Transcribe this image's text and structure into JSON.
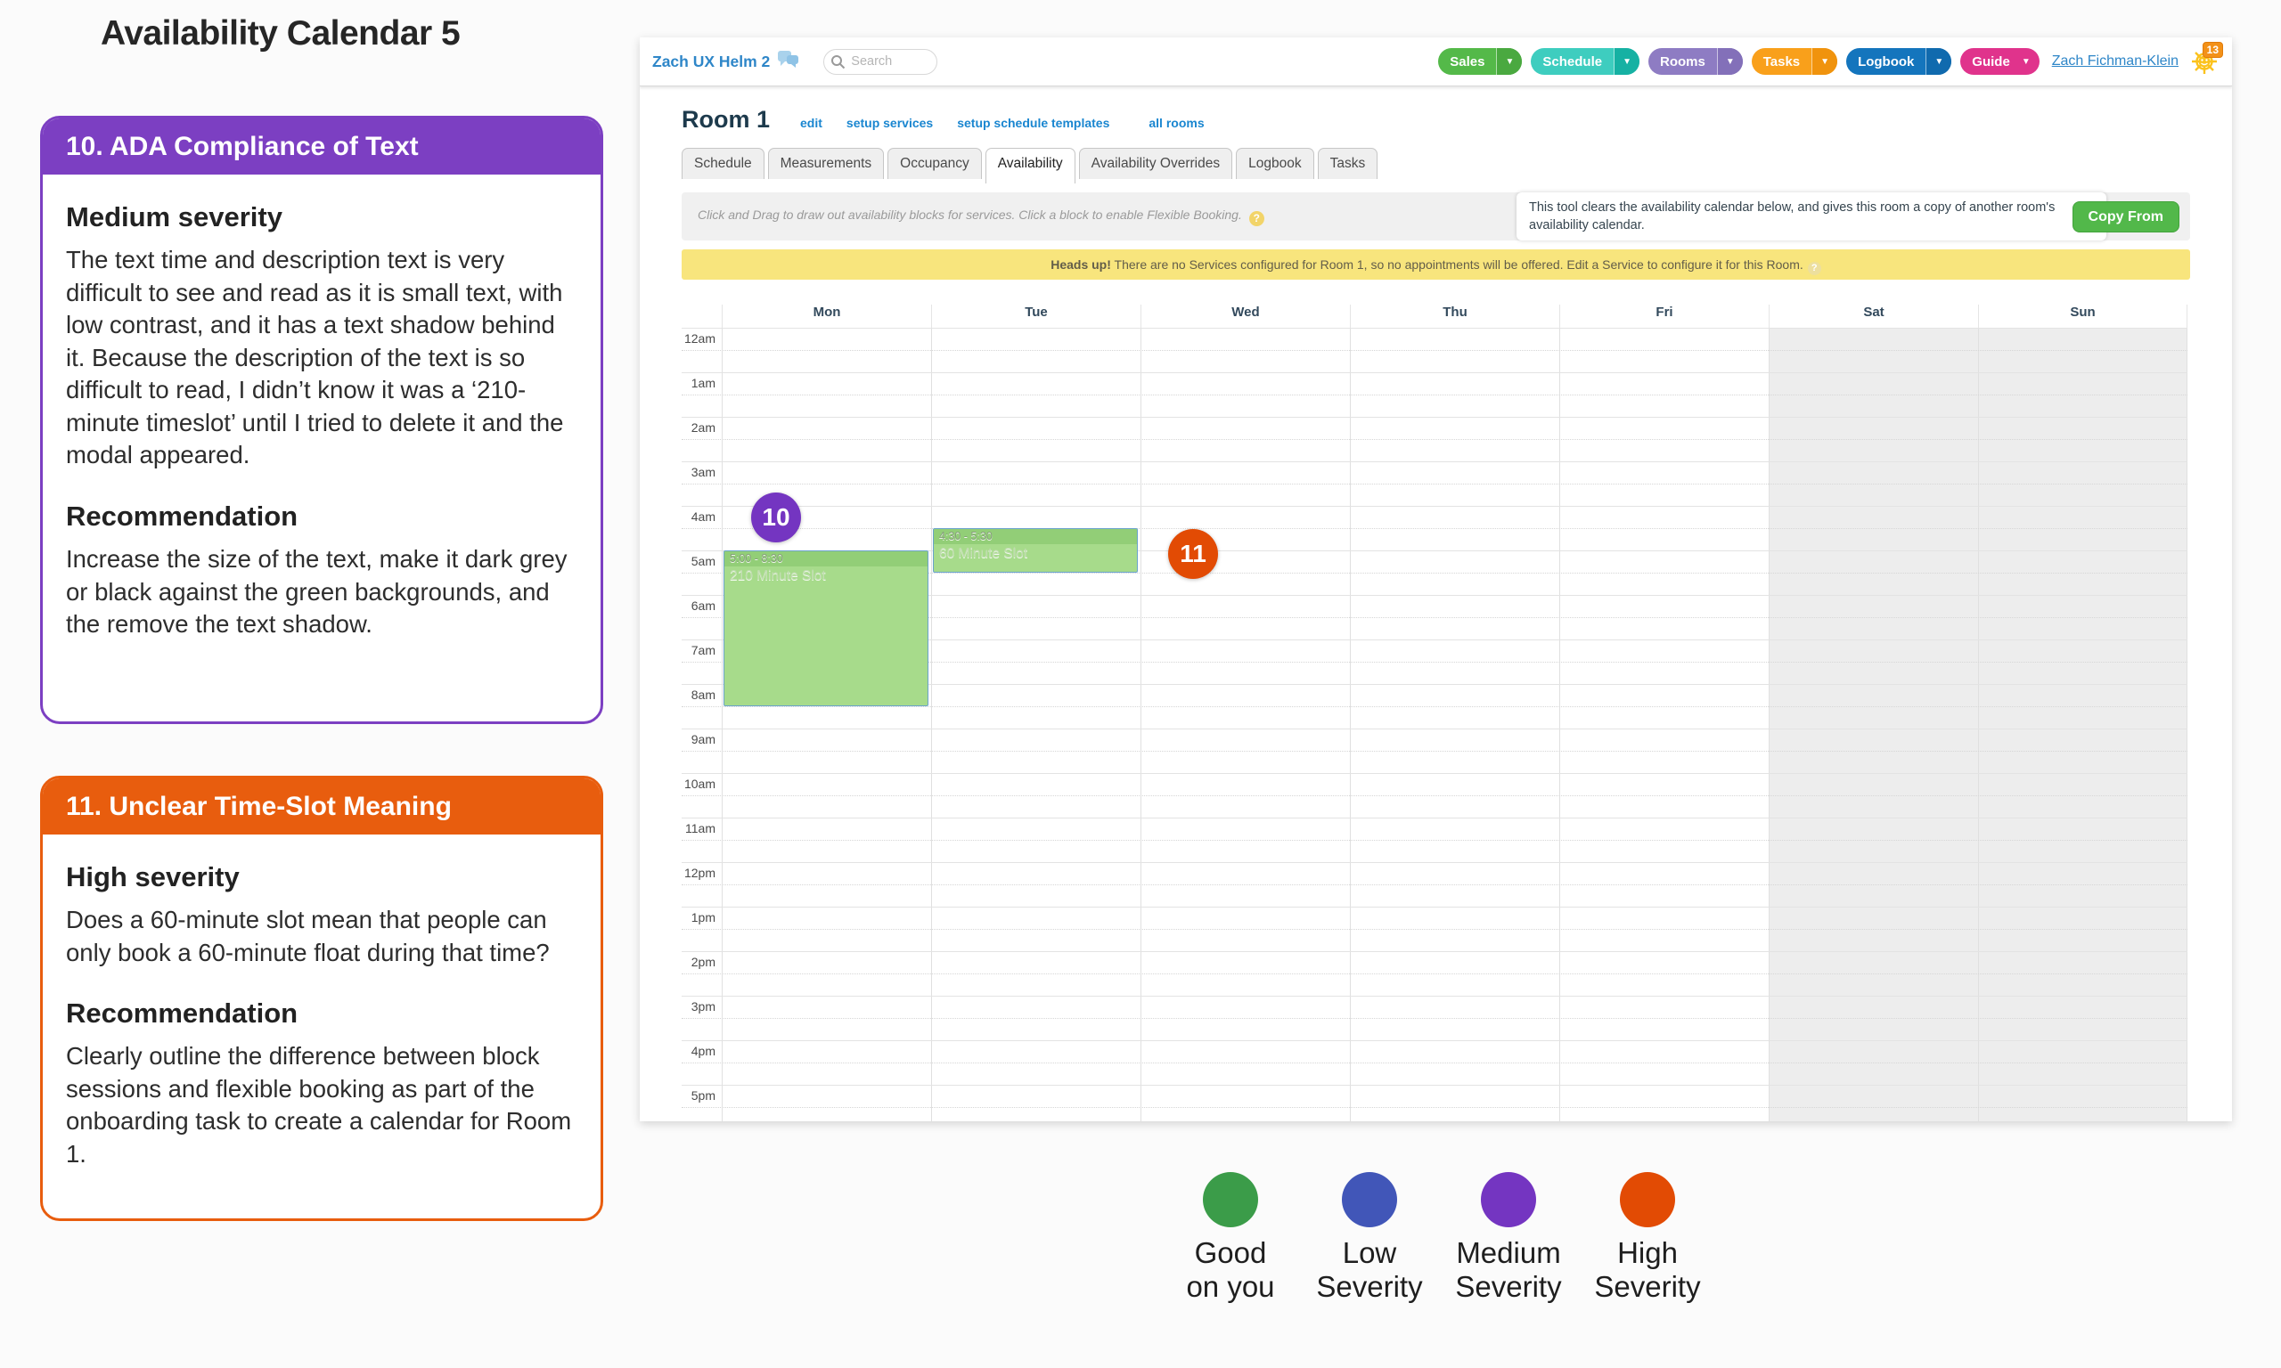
{
  "page_title": "Availability Calendar 5",
  "annotations": [
    {
      "number": "10",
      "color": "#7c3fc2",
      "title": "10. ADA Compliance of Text",
      "severity_heading": "Medium severity",
      "severity_text": "The text time and description text is very difficult to see and read as it is small text, with low contrast, and it has a text shadow behind it. Because the description of the text is so difficult to read, I didn’t know it was a ‘210-minute timeslot’ until I tried to delete it and the modal appeared.",
      "recommendation_heading": "Recommendation",
      "recommendation_text": "Increase the size of the text, make it dark grey or black against the green backgrounds, and the remove the text shadow."
    },
    {
      "number": "11",
      "color": "#e85d0e",
      "title": "11. Unclear Time-Slot Meaning",
      "severity_heading": "High severity",
      "severity_text": "Does a 60-minute slot mean that people can only book a 60-minute float during that time?",
      "recommendation_heading": "Recommendation",
      "recommendation_text": "Clearly outline the difference between block sessions and flexible booking as part of the onboarding task to create a calendar for Room 1."
    }
  ],
  "app": {
    "topbar": {
      "brand": "Zach UX Helm 2",
      "search_placeholder": "Search",
      "nav_buttons": [
        {
          "label": "Sales",
          "color": "#54b949",
          "caret_color": "#4aa940",
          "split": true
        },
        {
          "label": "Schedule",
          "color": "#3ecdbf",
          "caret_color": "#16b1a3",
          "split": true
        },
        {
          "label": "Rooms",
          "color": "#8e7cc3",
          "caret_color": "#8370b9",
          "split": true
        },
        {
          "label": "Tasks",
          "color": "#f9a01b",
          "caret_color": "#f0930d",
          "split": true
        },
        {
          "label": "Logbook",
          "color": "#1475bd",
          "caret_color": "#106aae",
          "split": true
        },
        {
          "label": "Guide",
          "color": "#e0338c",
          "caret_color": "#e0338c",
          "split": false
        }
      ],
      "user_name": "Zach Fichman-Klein",
      "badge_count": "13"
    },
    "room": {
      "title": "Room 1",
      "links": [
        "edit",
        "setup services",
        "setup schedule templates",
        "all rooms"
      ]
    },
    "tabs": [
      {
        "label": "Schedule",
        "active": false
      },
      {
        "label": "Measurements",
        "active": false
      },
      {
        "label": "Occupancy",
        "active": false
      },
      {
        "label": "Availability",
        "active": true
      },
      {
        "label": "Availability Overrides",
        "active": false
      },
      {
        "label": "Logbook",
        "active": false
      },
      {
        "label": "Tasks",
        "active": false
      }
    ],
    "hint_text": "Click and Drag to draw out availability blocks for services. Click a block to enable Flexible Booking.",
    "tooltip_text": "This tool clears the availability calendar below, and gives this room a copy of another room's availability calendar.",
    "copy_from_label": "Copy From",
    "warning": {
      "bold": "Heads up!",
      "rest": " There are no Services configured for Room 1, so no appointments will be offered. Edit a Service to configure it for this Room."
    },
    "calendar": {
      "days": [
        "Mon",
        "Tue",
        "Wed",
        "Thu",
        "Fri",
        "Sat",
        "Sun"
      ],
      "weekend_days": [
        "Sat",
        "Sun"
      ],
      "times": [
        "12am",
        "1am",
        "2am",
        "3am",
        "4am",
        "5am",
        "6am",
        "7am",
        "8am",
        "9am",
        "10am",
        "11am",
        "12pm",
        "1pm",
        "2pm",
        "3pm",
        "4pm",
        "5pm"
      ],
      "events": [
        {
          "day": "Mon",
          "day_index": 0,
          "start_hour": 5.0,
          "end_hour": 8.5,
          "time_label": "5:00 - 8:30",
          "title": "210 Minute Slot"
        },
        {
          "day": "Tue",
          "day_index": 1,
          "start_hour": 4.5,
          "end_hour": 5.5,
          "time_label": "4:30 - 5:30",
          "title": "60 Minute Slot"
        }
      ]
    },
    "badges": [
      {
        "number": "10",
        "color": "#7435c1"
      },
      {
        "number": "11",
        "color": "#e24b04"
      }
    ]
  },
  "legend": [
    {
      "label_line1": "Good",
      "label_line2": "on you",
      "color": "#3b9c49"
    },
    {
      "label_line1": "Low",
      "label_line2": "Severity",
      "color": "#4156b8"
    },
    {
      "label_line1": "Medium",
      "label_line2": "Severity",
      "color": "#7435c1"
    },
    {
      "label_line1": "High",
      "label_line2": "Severity",
      "color": "#e24b04"
    }
  ]
}
